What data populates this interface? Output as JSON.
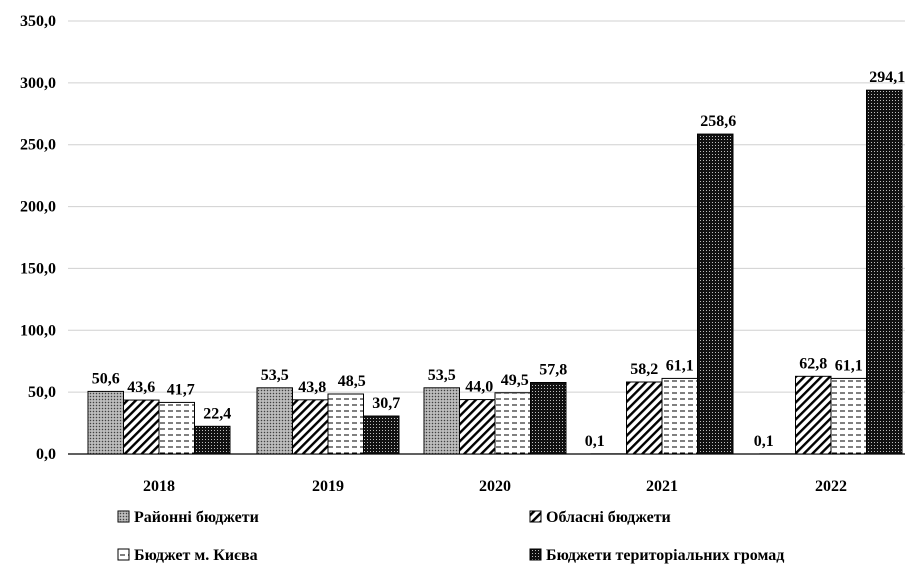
{
  "chart_data": {
    "type": "bar",
    "categories": [
      "2018",
      "2019",
      "2020",
      "2021",
      "2022"
    ],
    "series": [
      {
        "name": "Районні бюджети",
        "values": [
          50.6,
          53.5,
          53.5,
          0.1,
          0.1
        ],
        "labels": [
          "50,6",
          "53,5",
          "53,5",
          "0,1",
          "0,1"
        ],
        "pattern": "dots-grey"
      },
      {
        "name": "Обласні бюджети",
        "values": [
          43.6,
          43.8,
          44.0,
          58.2,
          62.8
        ],
        "labels": [
          "43,6",
          "43,8",
          "44,0",
          "58,2",
          "62,8"
        ],
        "pattern": "diagonal-hatch"
      },
      {
        "name": "Бюджет м. Києва",
        "values": [
          41.7,
          48.5,
          49.5,
          61.1,
          61.1
        ],
        "labels": [
          "41,7",
          "48,5",
          "49,5",
          "61,1",
          "61,1"
        ],
        "pattern": "horizontal-dashes"
      },
      {
        "name": "Бюджети територіальних громад",
        "values": [
          22.4,
          30.7,
          57.8,
          258.6,
          294.1
        ],
        "labels": [
          "22,4",
          "30,7",
          "57,8",
          "258,6",
          "294,1"
        ],
        "pattern": "dark-dots"
      }
    ],
    "ylim": [
      0,
      350
    ],
    "yticks": [
      0,
      50,
      100,
      150,
      200,
      250,
      300,
      350
    ],
    "ytick_labels": [
      "0,0",
      "50,0",
      "100,0",
      "150,0",
      "200,0",
      "250,0",
      "300,0",
      "350,0"
    ],
    "grid": true,
    "legend_position": "bottom",
    "title": "",
    "xlabel": "",
    "ylabel": ""
  }
}
